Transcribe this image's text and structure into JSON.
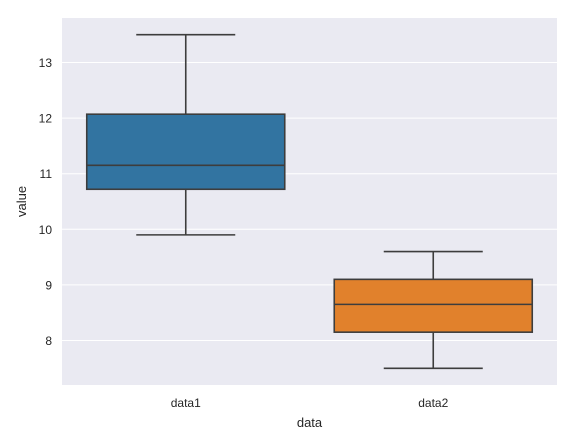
{
  "chart_data": {
    "type": "box",
    "xlabel": "data",
    "ylabel": "value",
    "categories": [
      "data1",
      "data2"
    ],
    "y_ticks": [
      8,
      9,
      10,
      11,
      12,
      13
    ],
    "ylim": [
      7.2,
      13.8
    ],
    "grid": true,
    "legend": "none",
    "series": [
      {
        "category": "data1",
        "color": "#3274a1",
        "whisker_low": 9.9,
        "q1": 10.72,
        "median": 11.15,
        "q3": 12.07,
        "whisker_high": 13.5
      },
      {
        "category": "data2",
        "color": "#e1812c",
        "whisker_low": 7.5,
        "q1": 8.15,
        "median": 8.65,
        "q3": 9.1,
        "whisker_high": 9.6
      }
    ],
    "colors": {
      "background": "#eaeaf2",
      "grid": "#ffffff",
      "lines": "#3d3d3d"
    }
  }
}
